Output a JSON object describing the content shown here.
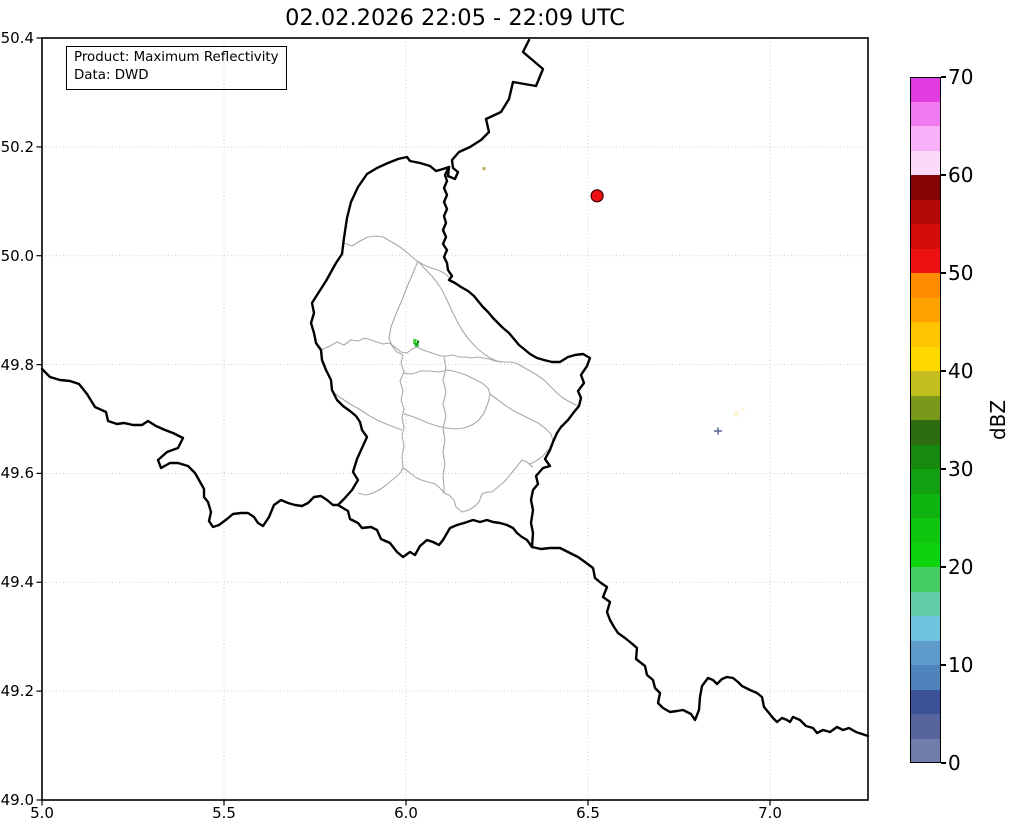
{
  "title": "02.02.2026 22:05 - 22:09 UTC",
  "info_box": {
    "product_line": "Product: Maximum Reflectivity",
    "data_line": "Data: DWD"
  },
  "axes": {
    "x_tick_labels": [
      "5.0",
      "5.5",
      "6.0",
      "6.5",
      "7.0"
    ],
    "y_tick_labels": [
      "50.4",
      "50.2",
      "50.0",
      "49.8",
      "49.6",
      "49.4",
      "49.2",
      "49.0"
    ]
  },
  "colorbar": {
    "label": "dBZ",
    "tick_labels": [
      "70",
      "60",
      "50",
      "40",
      "30",
      "20",
      "10",
      "0"
    ],
    "range": [
      0,
      70
    ],
    "band_step": 2.5,
    "band_colors_bottom_to_top": [
      "#707dab",
      "#57659f",
      "#3b5297",
      "#4f83bb",
      "#5d9bca",
      "#6fc3dc",
      "#62cbaa",
      "#44cd63",
      "#0cd30c",
      "#0ec60e",
      "#10b410",
      "#12a012",
      "#158a0f",
      "#2d6d0f",
      "#7c981a",
      "#c3bd20",
      "#ffd800",
      "#ffc300",
      "#ffa200",
      "#ff8c00",
      "#ee1111",
      "#d30c0c",
      "#b30808",
      "#870404",
      "#fbd9fb",
      "#f8b0f8",
      "#f07af0",
      "#e13ce1"
    ]
  },
  "chart_data": {
    "type": "scatter",
    "title": "02.02.2026 22:05 - 22:09 UTC",
    "product": "Maximum Reflectivity",
    "data_source": "DWD",
    "xlim": [
      5.0,
      7.27
    ],
    "ylim": [
      49.0,
      50.4
    ],
    "x_ticks": [
      5.0,
      5.5,
      6.0,
      6.5,
      7.0
    ],
    "y_ticks": [
      50.4,
      50.2,
      50.0,
      49.8,
      49.6,
      49.4,
      49.2,
      49.0
    ],
    "grid": true,
    "legend_position": "right-colorbar",
    "colorbar_label": "dBZ",
    "colorbar_range": [
      0,
      70
    ],
    "map_layers": [
      "country borders (black)",
      "Luxembourg canton borders (gray)"
    ],
    "points": [
      {
        "lon": 6.525,
        "lat": 50.11,
        "dbz": 51,
        "shape": "circle",
        "color": "#ee1111",
        "edge": "#400000"
      },
      {
        "lon": 6.214,
        "lat": 50.16,
        "dbz": 40,
        "shape": "dot",
        "color": "#b9aa55"
      },
      {
        "lon": 6.025,
        "lat": 49.836,
        "dbz": 25,
        "shape": "cluster",
        "colors": [
          "#3fcf3f",
          "#12a812",
          "#0c7a0c"
        ]
      },
      {
        "lon": 6.857,
        "lat": 49.678,
        "dbz": 5,
        "shape": "plus",
        "color": "#5e6b9b"
      },
      {
        "lon": 6.907,
        "lat": 49.71,
        "dbz": 42,
        "shape": "smudge",
        "color": "#faf3cf"
      }
    ]
  }
}
